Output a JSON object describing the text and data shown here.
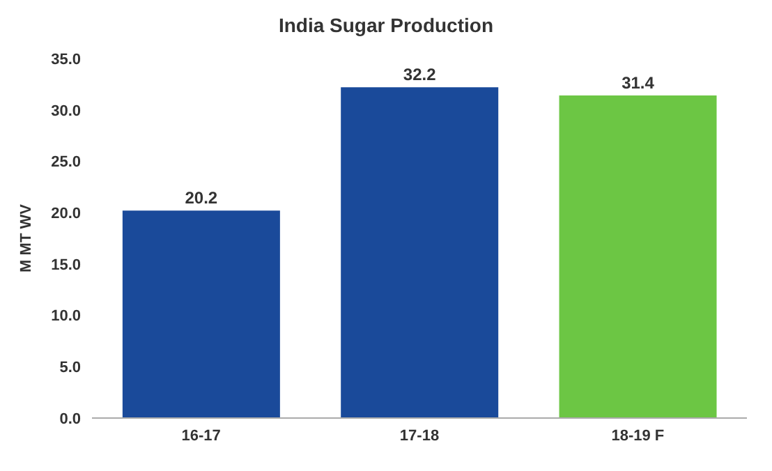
{
  "chart_data": {
    "type": "bar",
    "title": "India Sugar Production",
    "ylabel": "M MT WV",
    "categories": [
      "16-17",
      "17-18",
      "18-19 F"
    ],
    "values": [
      20.2,
      32.2,
      31.4
    ],
    "colors": [
      "#1a4a9a",
      "#1a4a9a",
      "#6cc644"
    ],
    "ylim": [
      0,
      35
    ],
    "yticks": [
      {
        "value": 0,
        "label": "0.0"
      },
      {
        "value": 5,
        "label": "5.0"
      },
      {
        "value": 10,
        "label": "10.0"
      },
      {
        "value": 15,
        "label": "15.0"
      },
      {
        "value": 20,
        "label": "20.0"
      },
      {
        "value": 25,
        "label": "25.0"
      },
      {
        "value": 30,
        "label": "30.0"
      },
      {
        "value": 35,
        "label": "35.0"
      }
    ],
    "data_labels": true,
    "grid": false
  }
}
